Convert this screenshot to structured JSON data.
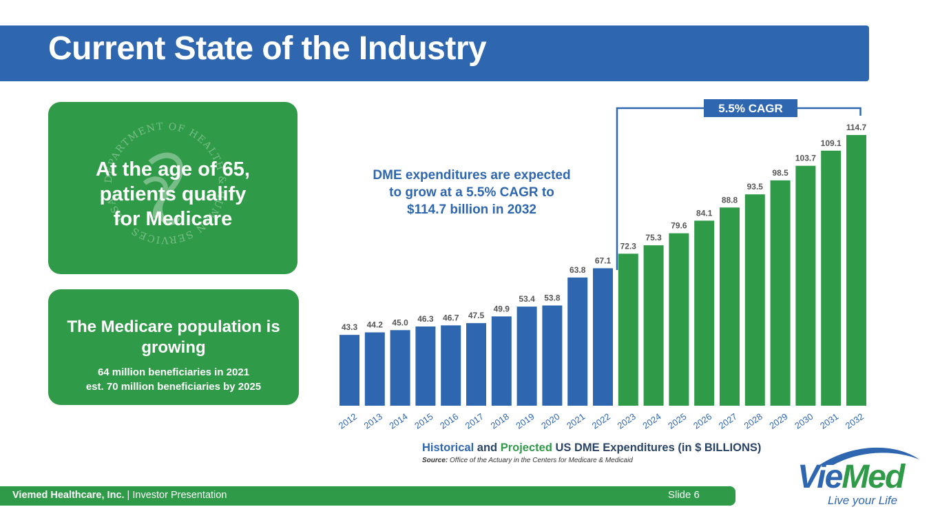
{
  "slide": {
    "title": "Current State of the Industry",
    "card1_text": "At the age of 65,\npatients qualify\nfor Medicare",
    "card2_heading": "The Medicare population is\ngrowing",
    "card2_sub": "64 million beneficiaries in 2021\nest. 70 million beneficiaries by 2025",
    "annotation": "DME expenditures are expected\nto grow at a 5.5% CAGR to\n$114.7 billion in 2032",
    "cagr_label": "5.5% CAGR",
    "caption_historical": "Historical",
    "caption_and": " and ",
    "caption_projected": "Projected",
    "caption_rest": " US DME Expenditures (in $ BILLIONS)",
    "source_label": "Source:",
    "source_text": " Office of the Actuary in the Centers for Medicare & Medicaid",
    "seal_text": "DEPARTMENT OF HEALTH & HUMAN SERVICES · USA"
  },
  "footer": {
    "company": "Viemed Healthcare, Inc.",
    "separator": " | ",
    "doc": "Investor Presentation",
    "slide_label": "Slide 6"
  },
  "logo": {
    "word_a": "Vie",
    "word_b": "Med",
    "tagline": "Live your Life"
  },
  "colors": {
    "historical": "#2e66b0",
    "projected": "#2f9a47"
  },
  "chart_data": {
    "type": "bar",
    "categories": [
      "2012",
      "2013",
      "2014",
      "2015",
      "2016",
      "2017",
      "2018",
      "2019",
      "2020",
      "2021",
      "2022",
      "2023",
      "2024",
      "2025",
      "2026",
      "2027",
      "2028",
      "2029",
      "2030",
      "2031",
      "2032"
    ],
    "values": [
      43.3,
      44.2,
      45.0,
      46.3,
      46.7,
      47.5,
      49.9,
      53.4,
      53.8,
      63.8,
      67.1,
      72.3,
      75.3,
      79.6,
      84.1,
      88.8,
      93.5,
      98.5,
      103.7,
      109.1,
      114.7
    ],
    "value_labels": [
      "43.3",
      "44.2",
      "45.0",
      "46.3",
      "46.7",
      "47.5",
      "49.9",
      "53.4",
      "53.8",
      "63.8",
      "67.1",
      "72.3",
      "75.3",
      "79.6",
      "84.1",
      "88.8",
      "93.5",
      "98.5",
      "103.7",
      "109.1",
      "114.7"
    ],
    "segments": [
      "historical",
      "historical",
      "historical",
      "historical",
      "historical",
      "historical",
      "historical",
      "historical",
      "historical",
      "historical",
      "historical",
      "projected",
      "projected",
      "projected",
      "projected",
      "projected",
      "projected",
      "projected",
      "projected",
      "projected",
      "projected"
    ],
    "ylim": [
      18,
      114.7
    ],
    "grid": false,
    "title": "Historical and Projected US DME Expenditures (in $ BILLIONS)"
  }
}
